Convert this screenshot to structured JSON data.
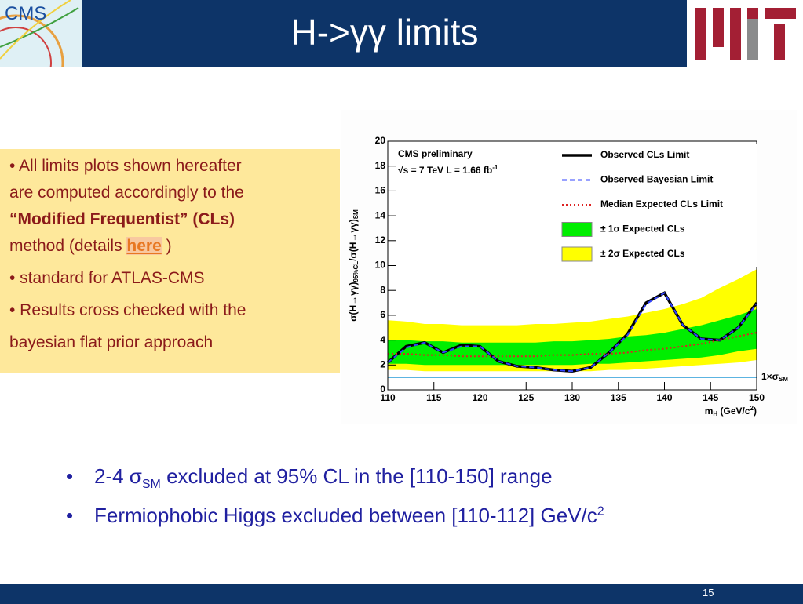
{
  "header": {
    "title": "H->γγ limits",
    "logo_text": "CMS"
  },
  "box": {
    "lines": [
      [
        "• All limits plots shown hereafter"
      ],
      [
        "are computed accordingly to the"
      ],
      [
        "“Modified Frequentist” (CLs)"
      ],
      [
        "method (details ",
        "here",
        " )"
      ],
      [
        "• standard for ATLAS-CMS"
      ],
      [
        "• Results cross checked with the"
      ],
      [
        "bayesian flat prior approach"
      ]
    ]
  },
  "bullets": [
    {
      "marker": "•",
      "parts": [
        "2-4 σ",
        "SM",
        " excluded at 95% CL in the [110-150] range"
      ]
    },
    {
      "marker": "•",
      "parts": [
        "Fermiophobic Higgs excluded between [110-112] GeV/c",
        "2"
      ]
    }
  ],
  "footer": {
    "page": "15"
  },
  "chart_data": {
    "type": "line",
    "annotations": [
      "CMS preliminary",
      "√s = 7 TeV L = 1.66 fb",
      "-1"
    ],
    "ylabel": [
      "σ(H→γγ)",
      "95%CL",
      "/σ(H→γγ)",
      "SM"
    ],
    "xlabel": [
      "m",
      "H",
      " (GeV/c",
      "2",
      ")"
    ],
    "x": [
      110,
      112,
      114,
      116,
      118,
      120,
      122,
      124,
      126,
      128,
      130,
      132,
      134,
      136,
      138,
      140,
      142,
      144,
      146,
      148,
      150
    ],
    "xlim": [
      110,
      150
    ],
    "xticks": [
      110,
      115,
      120,
      125,
      130,
      135,
      140,
      145,
      150
    ],
    "ylim": [
      0,
      20
    ],
    "yticks": [
      0,
      2,
      4,
      6,
      8,
      10,
      12,
      14,
      16,
      18,
      20
    ],
    "hline": {
      "value": 1,
      "color": "#44aadd",
      "label": [
        "1×σ",
        "SM"
      ]
    },
    "legend": "upper right",
    "series": [
      {
        "name": "Observed CLs Limit",
        "color": "#000000",
        "style": "solid",
        "values": [
          2.2,
          3.5,
          3.8,
          3.0,
          3.6,
          3.5,
          2.3,
          1.9,
          1.8,
          1.6,
          1.5,
          1.8,
          3.0,
          4.5,
          7.0,
          7.8,
          5.2,
          4.1,
          4.0,
          5.0,
          7.0
        ]
      },
      {
        "name": "Observed Bayesian Limit",
        "color": "#3344ff",
        "style": "dashed",
        "values": [
          2.2,
          3.4,
          3.8,
          3.0,
          3.5,
          3.5,
          2.3,
          1.9,
          1.8,
          1.6,
          1.5,
          1.8,
          3.0,
          4.4,
          6.9,
          7.8,
          5.2,
          4.1,
          4.0,
          5.0,
          6.9
        ]
      },
      {
        "name": "Median Expected CLs Limit",
        "color": "#dd2222",
        "style": "dotted",
        "values": [
          2.9,
          2.9,
          2.8,
          2.8,
          2.7,
          2.7,
          2.7,
          2.7,
          2.7,
          2.8,
          2.8,
          2.9,
          2.9,
          3.0,
          3.2,
          3.3,
          3.5,
          3.7,
          4.0,
          4.3,
          4.6
        ]
      },
      {
        "name": "± 1σ Expected CLs",
        "color": "#00ee00",
        "style": "band",
        "lower": [
          2.1,
          2.1,
          2.0,
          2.0,
          2.0,
          2.0,
          2.0,
          2.0,
          2.0,
          2.0,
          2.0,
          2.1,
          2.1,
          2.2,
          2.3,
          2.4,
          2.5,
          2.6,
          2.8,
          3.1,
          3.3
        ],
        "upper": [
          4.0,
          4.0,
          3.9,
          3.9,
          3.8,
          3.8,
          3.8,
          3.8,
          3.8,
          3.9,
          3.9,
          4.0,
          4.1,
          4.3,
          4.4,
          4.6,
          4.9,
          5.2,
          5.6,
          6.0,
          6.5
        ]
      },
      {
        "name": "± 2σ Expected CLs",
        "color": "#ffff00",
        "style": "band",
        "lower": [
          1.6,
          1.6,
          1.5,
          1.5,
          1.5,
          1.5,
          1.5,
          1.5,
          1.5,
          1.5,
          1.5,
          1.5,
          1.6,
          1.6,
          1.7,
          1.8,
          1.9,
          2.0,
          2.1,
          2.2,
          2.4
        ],
        "upper": [
          5.6,
          5.5,
          5.3,
          5.3,
          5.2,
          5.2,
          5.2,
          5.2,
          5.3,
          5.3,
          5.4,
          5.5,
          5.7,
          5.9,
          6.2,
          6.5,
          6.9,
          7.4,
          8.2,
          8.9,
          9.7
        ]
      }
    ]
  }
}
